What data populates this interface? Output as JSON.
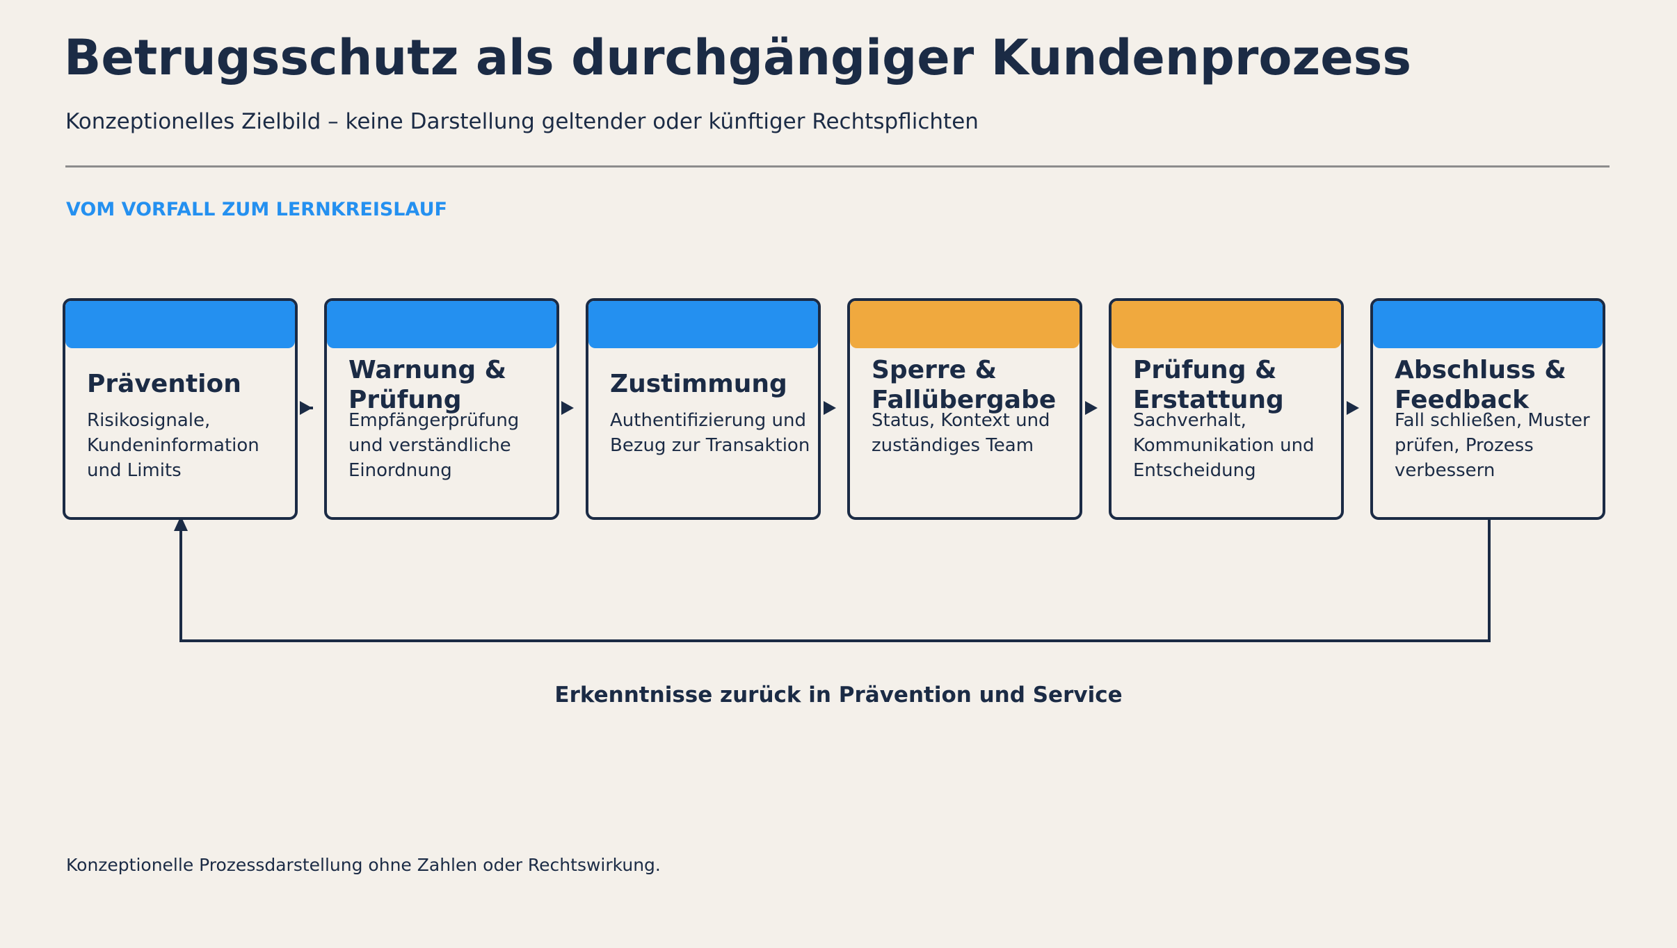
{
  "header": {
    "title": "Betrugsschutz als durchgängiger Kundenprozess",
    "subtitle": "Konzeptionelles Zielbild – keine Darstellung geltender oder künftiger Rechtspflichten"
  },
  "section_label": "VOM VORFALL ZUM LERNKREISLAUF",
  "steps": [
    {
      "title": "Prävention",
      "desc": "Risikosignale, Kundeninformation und Limits",
      "color": "#2490f0"
    },
    {
      "title": "Warnung & Prüfung",
      "desc": "Empfängerprüfung und verständliche Einordnung",
      "color": "#2490f0"
    },
    {
      "title": "Zustimmung",
      "desc": "Authentifizierung und Bezug zur Transaktion",
      "color": "#2490f0"
    },
    {
      "title": "Sperre & Fallübergabe",
      "desc": "Status, Kontext und zuständiges Team",
      "color": "#f0a93e"
    },
    {
      "title": "Prüfung & Erstattung",
      "desc": "Sachverhalt, Kommunikation und Entscheidung",
      "color": "#f0a93e"
    },
    {
      "title": "Abschluss & Feedback",
      "desc": "Fall schließen, Muster prüfen, Prozess verbessern",
      "color": "#2490f0"
    }
  ],
  "feedback_loop_label": "Erkenntnisse zurück in Prävention und Service",
  "footnote": "Konzeptionelle Prozessdarstellung ohne Zahlen oder Rechtswirkung."
}
